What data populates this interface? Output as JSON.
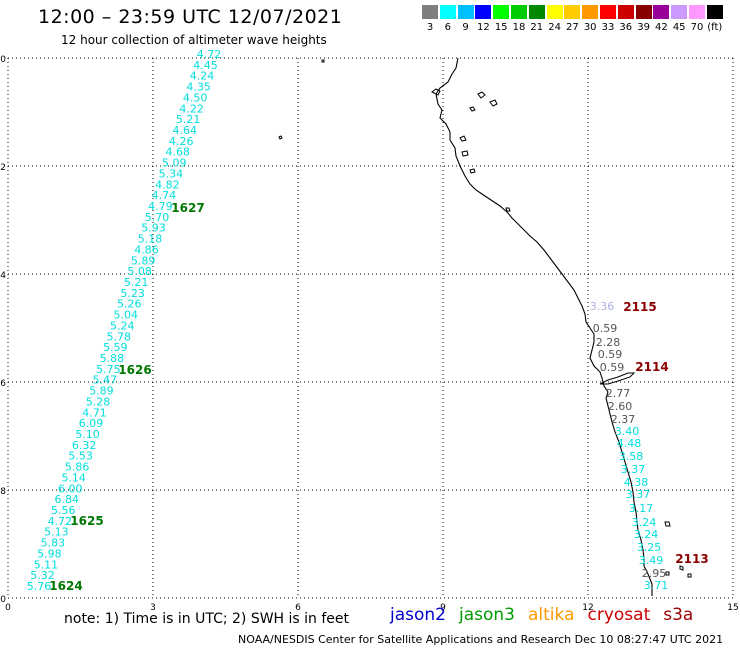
{
  "title": "12:00 – 23:59 UTC 12/07/2021",
  "subtitle": "12 hour collection of altimeter wave heights",
  "legend": {
    "unit": "(ft)",
    "bins": [
      {
        "label": "3",
        "color": "#7f7f7f"
      },
      {
        "label": "6",
        "color": "#00ffff"
      },
      {
        "label": "9",
        "color": "#00bfff"
      },
      {
        "label": "12",
        "color": "#0000ff"
      },
      {
        "label": "15",
        "color": "#00ff00"
      },
      {
        "label": "18",
        "color": "#00cc00"
      },
      {
        "label": "21",
        "color": "#008800"
      },
      {
        "label": "24",
        "color": "#ffff00"
      },
      {
        "label": "27",
        "color": "#ffcc00"
      },
      {
        "label": "30",
        "color": "#ff9900"
      },
      {
        "label": "33",
        "color": "#ff0000"
      },
      {
        "label": "36",
        "color": "#cc0000"
      },
      {
        "label": "39",
        "color": "#880000"
      },
      {
        "label": "42",
        "color": "#990099"
      },
      {
        "label": "45",
        "color": "#cc99ff"
      },
      {
        "label": "70",
        "color": "#ff99ff"
      },
      {
        "label": "",
        "color": "#000000"
      }
    ]
  },
  "axes": {
    "x_ticks": [
      "0",
      "3",
      "6",
      "9",
      "12",
      "15"
    ],
    "y_ticks": [
      "0",
      "-2",
      "-4",
      "-6",
      "-8",
      "-10"
    ],
    "x_range": [
      0,
      15
    ],
    "y_range": [
      0,
      -10
    ],
    "grid": "dotted"
  },
  "tracks": {
    "west": {
      "color": "#00dede",
      "values": [
        "4.72",
        "4.45",
        "4.24",
        "4.35",
        "4.50",
        "4.22",
        "5.21",
        "4.64",
        "4.26",
        "4.68",
        "5.09",
        "5.34",
        "4.82",
        "4.74",
        "4.79",
        "5.70",
        "5.93",
        "5.18",
        "4.86",
        "5.89",
        "5.08",
        "5.21",
        "5.23",
        "5.26",
        "5.04",
        "5.24",
        "5.78",
        "5.59",
        "5.88",
        "5.75",
        "5.47",
        "5.89",
        "5.28",
        "4.71",
        "6.09",
        "5.10",
        "6.32",
        "5.53",
        "5.86",
        "5.14",
        "6.00",
        "6.84",
        "5.56",
        "4.72",
        "5.13",
        "5.83",
        "5.98",
        "5.11",
        "5.32",
        "5.76"
      ],
      "times": [
        {
          "label": "1627",
          "color": "#007700"
        },
        {
          "label": "1626",
          "color": "#007700"
        },
        {
          "label": "1625",
          "color": "#007700"
        },
        {
          "label": "1624",
          "color": "#007700"
        }
      ]
    },
    "east": {
      "values": [
        {
          "v": "3.36",
          "color": "#b0b0e8"
        },
        {
          "v": "0.59",
          "color": "#555555"
        },
        {
          "v": "2.28",
          "color": "#555555"
        },
        {
          "v": "0.59",
          "color": "#555555"
        },
        {
          "v": "0.59",
          "color": "#555555"
        },
        {
          "v": "2.77",
          "color": "#555555"
        },
        {
          "v": "2.60",
          "color": "#555555"
        },
        {
          "v": "2.37",
          "color": "#555555"
        },
        {
          "v": "3.40",
          "color": "#00dede"
        },
        {
          "v": "4.48",
          "color": "#00dede"
        },
        {
          "v": "3.58",
          "color": "#00dede"
        },
        {
          "v": "3.37",
          "color": "#00dede"
        },
        {
          "v": "4.38",
          "color": "#00dede"
        },
        {
          "v": "3.37",
          "color": "#00dede"
        },
        {
          "v": "3.17",
          "color": "#00dede"
        },
        {
          "v": "3.24",
          "color": "#00dede"
        },
        {
          "v": "3.24",
          "color": "#00dede"
        },
        {
          "v": "3.25",
          "color": "#00dede"
        },
        {
          "v": "3.49",
          "color": "#00dede"
        },
        {
          "v": "2.95",
          "color": "#555555"
        },
        {
          "v": "3.71",
          "color": "#00dede"
        }
      ],
      "times": [
        {
          "label": "2115",
          "color": "#8b0000"
        },
        {
          "label": "2114",
          "color": "#8b0000"
        },
        {
          "label": "2113",
          "color": "#8b0000"
        }
      ]
    }
  },
  "note": "note: 1) Time is in UTC; 2) SWH is in feet",
  "missions": [
    {
      "name": "jason2",
      "color": "#0000cc"
    },
    {
      "name": "jason3",
      "color": "#009900"
    },
    {
      "name": "altika",
      "color": "#ff9900"
    },
    {
      "name": "cryosat",
      "color": "#cc0000"
    },
    {
      "name": "s3a",
      "color": "#990000"
    }
  ],
  "credit": "NOAA/NESDIS Center for Satellite Applications and Research    Dec 10 08:27:47 UTC 2021"
}
